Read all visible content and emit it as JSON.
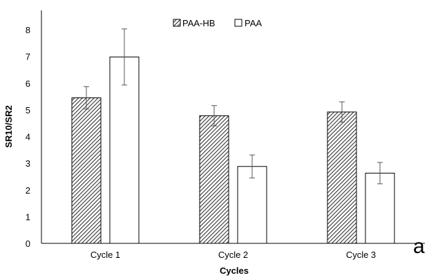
{
  "chart_data": {
    "type": "bar",
    "title": "",
    "xlabel": "Cycles",
    "ylabel": "SR10/SR2",
    "categories": [
      "Cycle 1",
      "Cycle 2",
      "Cycle 3"
    ],
    "ylim": [
      0,
      8
    ],
    "yticks": [
      0,
      1,
      2,
      3,
      4,
      5,
      6,
      7,
      8
    ],
    "grid": false,
    "legend_position": "top-center",
    "series": [
      {
        "name": "PAA-HB",
        "values": [
          5.45,
          4.78,
          4.92
        ],
        "errors": [
          0.42,
          0.38,
          0.38
        ],
        "fill": "hatched"
      },
      {
        "name": "PAA",
        "values": [
          6.98,
          2.88,
          2.63
        ],
        "errors": [
          1.05,
          0.43,
          0.4
        ],
        "fill": "white"
      }
    ],
    "panel_label": "a",
    "colors": {
      "bar_stroke": "#000000",
      "hatch": "#333333",
      "error_bar": "#555555",
      "axis": "#000000"
    }
  }
}
